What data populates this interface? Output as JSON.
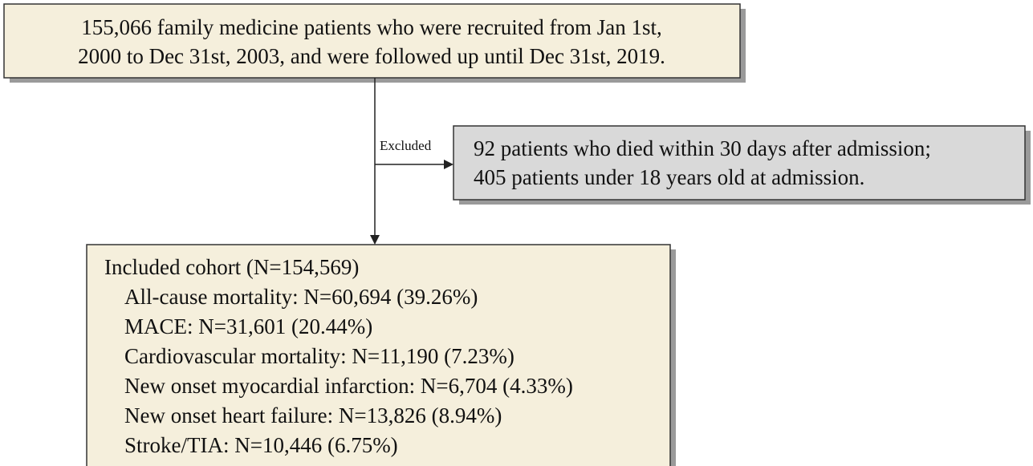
{
  "nodes": [
    {
      "lines": [
        "155,066 family medicine patients who were recruited from Jan 1st,",
        "2000 to Dec 31st, 2003, and were followed up until Dec 31st, 2019."
      ]
    },
    {
      "lines": [
        "92 patients who died within 30 days after admission;",
        "405 patients under 18 years old at admission."
      ]
    },
    {
      "lines": [
        "Included cohort (N=154,569)",
        "All-cause mortality: N=60,694 (39.26%)",
        "MACE: N=31,601 (20.44%)",
        "Cardiovascular mortality: N=11,190 (7.23%)",
        "New onset myocardial infarction: N=6,704 (4.33%)",
        "New onset heart failure: N=13,826 (8.94%)",
        "Stroke/TIA: N=10,446 (6.75%)"
      ]
    }
  ],
  "edges": [
    {
      "label": "Excluded"
    }
  ]
}
